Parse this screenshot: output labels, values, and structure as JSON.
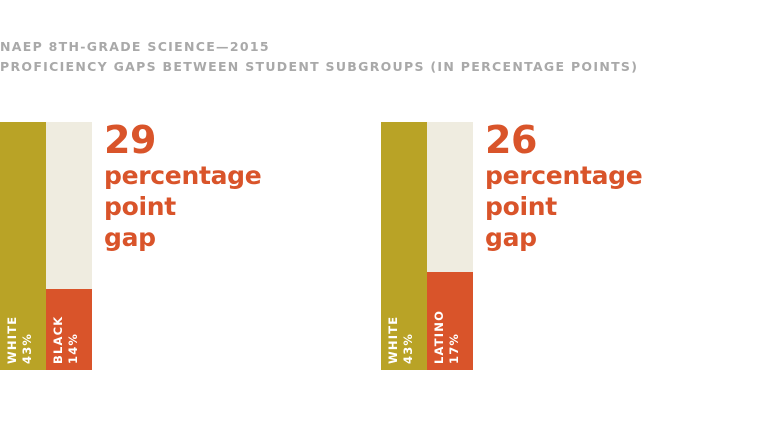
{
  "header": {
    "title": "NAEP 8TH-GRADE SCIENCE—2015",
    "subtitle": "PROFICIENCY GAPS BETWEEN STUDENT SUBGROUPS (IN PERCENTAGE POINTS)"
  },
  "colors": {
    "white_bar": "#b9a326",
    "subgroup_bar": "#d9542a",
    "track": "#efece0",
    "title": "#a9a9a9",
    "gap_text": "#d9542a"
  },
  "chart_data": [
    {
      "type": "bar",
      "title": "NAEP 8TH-GRADE SCIENCE—2015",
      "subtitle": "PROFICIENCY GAPS BETWEEN STUDENT SUBGROUPS (IN PERCENTAGE POINTS)",
      "categories": [
        "WHITE",
        "BLACK"
      ],
      "values": [
        43,
        14
      ],
      "value_labels": [
        "43%",
        "14%"
      ],
      "ylim": [
        0,
        43
      ],
      "gap": "29",
      "gap_text": [
        "percentage",
        "point",
        "gap"
      ],
      "grid": false
    },
    {
      "type": "bar",
      "title": "NAEP 8TH-GRADE SCIENCE—2015",
      "subtitle": "PROFICIENCY GAPS BETWEEN STUDENT SUBGROUPS (IN PERCENTAGE POINTS)",
      "categories": [
        "WHITE",
        "LATINO"
      ],
      "values": [
        43,
        17
      ],
      "value_labels": [
        "43%",
        "17%"
      ],
      "ylim": [
        0,
        43
      ],
      "gap": "26",
      "gap_text": [
        "percentage",
        "point",
        "gap"
      ],
      "grid": false
    }
  ]
}
